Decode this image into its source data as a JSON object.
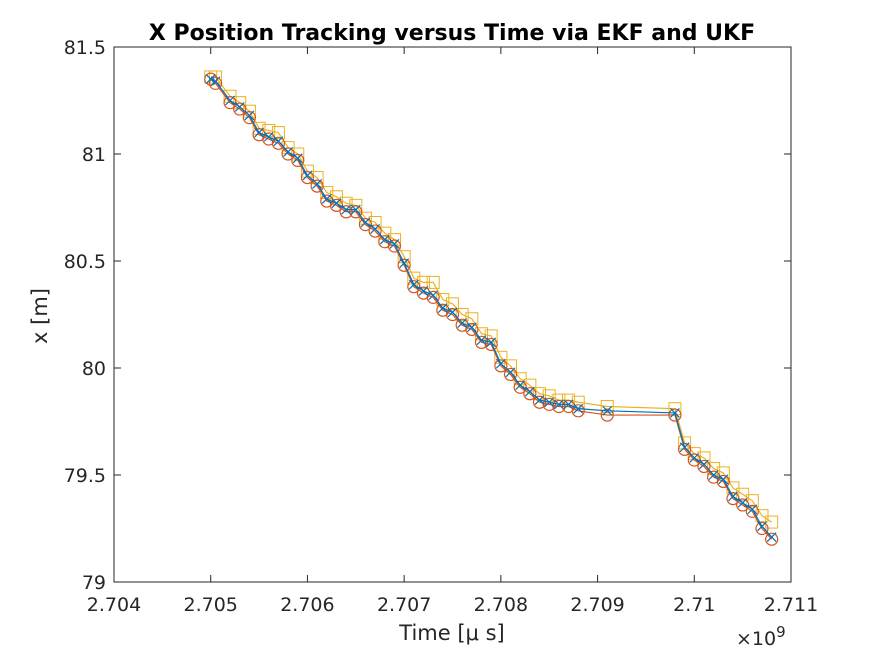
{
  "chart_data": {
    "type": "line",
    "title": "X Position Tracking versus Time via EKF and UKF",
    "xlabel": "Time [μ s]",
    "ylabel": "x [m]",
    "x_exponent_label": "×10",
    "x_exponent_power": "9",
    "x_tick_labels": [
      "2.704",
      "2.705",
      "2.706",
      "2.707",
      "2.708",
      "2.709",
      "2.71",
      "2.711"
    ],
    "y_tick_labels": [
      "79",
      "79.5",
      "80",
      "80.5",
      "81",
      "81.5"
    ],
    "xlim": [
      2.704,
      2.711
    ],
    "ylim": [
      79,
      81.5
    ],
    "grid": false,
    "legend": "none",
    "colors": {
      "truth": "#0072BD",
      "ekf": "#D95319",
      "ukf": "#EDB120",
      "axis": "#262626"
    },
    "x": [
      2.705,
      2.70505,
      2.7052,
      2.7053,
      2.7054,
      2.7055,
      2.7056,
      2.7057,
      2.7058,
      2.7059,
      2.706,
      2.7061,
      2.7062,
      2.7063,
      2.7064,
      2.7065,
      2.7066,
      2.7067,
      2.7068,
      2.7069,
      2.707,
      2.7071,
      2.7072,
      2.7073,
      2.7074,
      2.7075,
      2.7076,
      2.7077,
      2.7078,
      2.7079,
      2.708,
      2.7081,
      2.7082,
      2.7083,
      2.7084,
      2.7085,
      2.7086,
      2.7087,
      2.7088,
      2.7091,
      2.7098,
      2.7099,
      2.71,
      2.7101,
      2.7102,
      2.7103,
      2.7104,
      2.7105,
      2.7106,
      2.7107,
      2.7108
    ],
    "series": [
      {
        "marker": "x",
        "values": [
          81.35,
          81.34,
          81.25,
          81.22,
          81.18,
          81.1,
          81.08,
          81.06,
          81.01,
          80.98,
          80.9,
          80.86,
          80.79,
          80.77,
          80.74,
          80.74,
          80.68,
          80.65,
          80.6,
          80.58,
          80.49,
          80.39,
          80.36,
          80.34,
          80.28,
          80.26,
          80.21,
          80.19,
          80.13,
          80.12,
          80.02,
          79.98,
          79.92,
          79.89,
          79.85,
          79.84,
          79.83,
          79.83,
          79.81,
          79.8,
          79.79,
          79.63,
          79.58,
          79.55,
          79.5,
          79.48,
          79.4,
          79.37,
          79.34,
          79.26,
          79.21
        ]
      },
      {
        "marker": "o",
        "values": [
          81.35,
          81.33,
          81.24,
          81.21,
          81.17,
          81.09,
          81.07,
          81.05,
          81.0,
          80.97,
          80.89,
          80.85,
          80.78,
          80.76,
          80.73,
          80.73,
          80.67,
          80.64,
          80.59,
          80.57,
          80.48,
          80.38,
          80.35,
          80.33,
          80.27,
          80.25,
          80.2,
          80.18,
          80.12,
          80.11,
          80.01,
          79.97,
          79.91,
          79.88,
          79.84,
          79.83,
          79.82,
          79.82,
          79.8,
          79.78,
          79.78,
          79.62,
          79.57,
          79.54,
          79.49,
          79.47,
          79.39,
          79.36,
          79.33,
          79.25,
          79.2
        ]
      },
      {
        "marker": "square",
        "values": [
          81.36,
          81.36,
          81.27,
          81.24,
          81.2,
          81.12,
          81.11,
          81.1,
          81.03,
          81.0,
          80.92,
          80.89,
          80.82,
          80.8,
          80.77,
          80.76,
          80.7,
          80.68,
          80.63,
          80.6,
          80.52,
          80.42,
          80.4,
          80.4,
          80.32,
          80.3,
          80.25,
          80.23,
          80.16,
          80.15,
          80.05,
          80.01,
          79.95,
          79.92,
          79.88,
          79.87,
          79.85,
          79.85,
          79.84,
          79.82,
          79.81,
          79.65,
          79.6,
          79.58,
          79.53,
          79.51,
          79.44,
          79.41,
          79.38,
          79.31,
          79.28
        ]
      }
    ]
  }
}
